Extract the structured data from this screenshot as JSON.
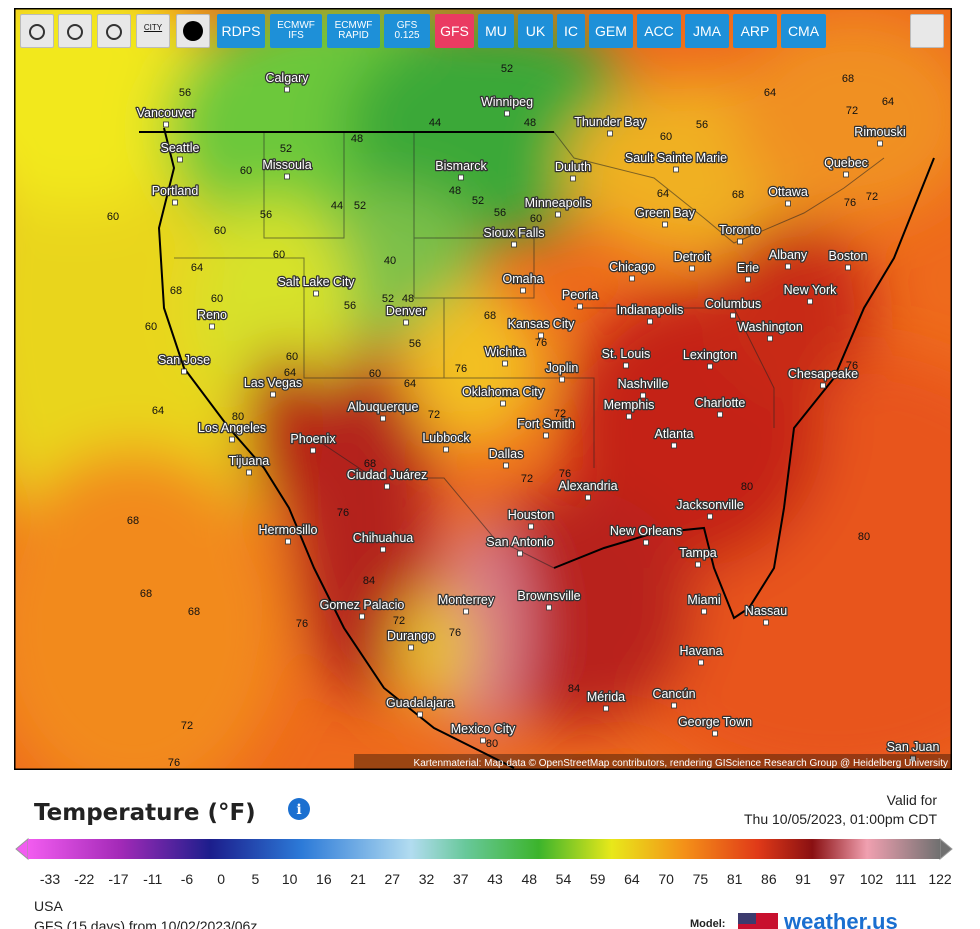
{
  "toolbar": {
    "city_toggle": "CITY",
    "buttons": [
      [
        "RDPS"
      ],
      [
        "ECMWF",
        "IFS"
      ],
      [
        "ECMWF",
        "RAPID"
      ],
      [
        "GFS",
        "0.125"
      ],
      [
        "GFS"
      ],
      [
        "MU"
      ],
      [
        "UK"
      ],
      [
        "IC"
      ],
      [
        "GEM"
      ],
      [
        "ACC"
      ],
      [
        "JMA"
      ],
      [
        "ARP"
      ],
      [
        "CMA"
      ]
    ]
  },
  "map": {
    "cities": [
      "Calgary",
      "Vancouver",
      "Winnipeg",
      "Thunder Bay",
      "Seattle",
      "Missoula",
      "Bismarck",
      "Duluth",
      "Sault Sainte Marie",
      "Rimouski",
      "Quebec",
      "Portland",
      "Minneapolis",
      "Green Bay",
      "Ottawa",
      "Sioux Falls",
      "Toronto",
      "Albany",
      "Boston",
      "Detroit",
      "Erie",
      "Chicago",
      "Reno",
      "Salt Lake City",
      "Omaha",
      "Denver",
      "Peoria",
      "Kansas City",
      "Indianapolis",
      "Columbus",
      "New York",
      "Washington",
      "San Jose",
      "Wichita",
      "St. Louis",
      "Lexington",
      "Las Vegas",
      "Joplin",
      "Nashville",
      "Chesapeake",
      "Oklahoma City",
      "Albuquerque",
      "Memphis",
      "Charlotte",
      "Los Angeles",
      "Phoenix",
      "Fort Smith",
      "Lubbock",
      "Atlanta",
      "Tijuana",
      "Dallas",
      "Ciudad Juárez",
      "Alexandria",
      "Jacksonville",
      "Houston",
      "Hermosillo",
      "New Orleans",
      "San Antonio",
      "Chihuahua",
      "Tampa",
      "Gomez Palacio",
      "Monterrey",
      "Brownsville",
      "Miami",
      "Nassau",
      "Durango",
      "Havana",
      "Mérida",
      "Cancún",
      "Guadalajara",
      "George Town",
      "Mexico City",
      "San Juan"
    ],
    "isotherms": [
      56,
      52,
      52,
      48,
      44,
      48,
      56,
      60,
      64,
      68,
      72,
      64,
      60,
      56,
      60,
      60,
      64,
      68,
      60,
      60,
      60,
      44,
      52,
      40,
      52,
      48,
      56,
      56,
      60,
      64,
      60,
      64,
      68,
      76,
      76,
      72,
      72,
      76,
      72,
      68,
      80,
      64,
      68,
      68,
      68,
      76,
      72,
      76,
      80,
      80,
      76,
      72,
      76,
      68,
      56,
      60,
      64,
      52,
      48,
      84,
      84,
      76,
      72,
      76,
      80
    ],
    "attribution": "Kartenmaterial: Map data © OpenStreetMap contributors, rendering GIScience Research Group @ Heidelberg University"
  },
  "legend": {
    "title": "Temperature (°F)",
    "valid_label": "Valid for",
    "valid_time": "Thu 10/05/2023, 01:00pm CDT",
    "ticks": [
      -33,
      -22,
      -17,
      -11,
      -6,
      0,
      5,
      10,
      16,
      21,
      27,
      32,
      37,
      43,
      48,
      54,
      59,
      64,
      70,
      75,
      81,
      86,
      91,
      97,
      102,
      111,
      122
    ]
  },
  "footer": {
    "region": "USA",
    "run": "GFS (15 days) from 10/02/2023/06z",
    "model_label": "Model:",
    "brand": "weather.us"
  }
}
